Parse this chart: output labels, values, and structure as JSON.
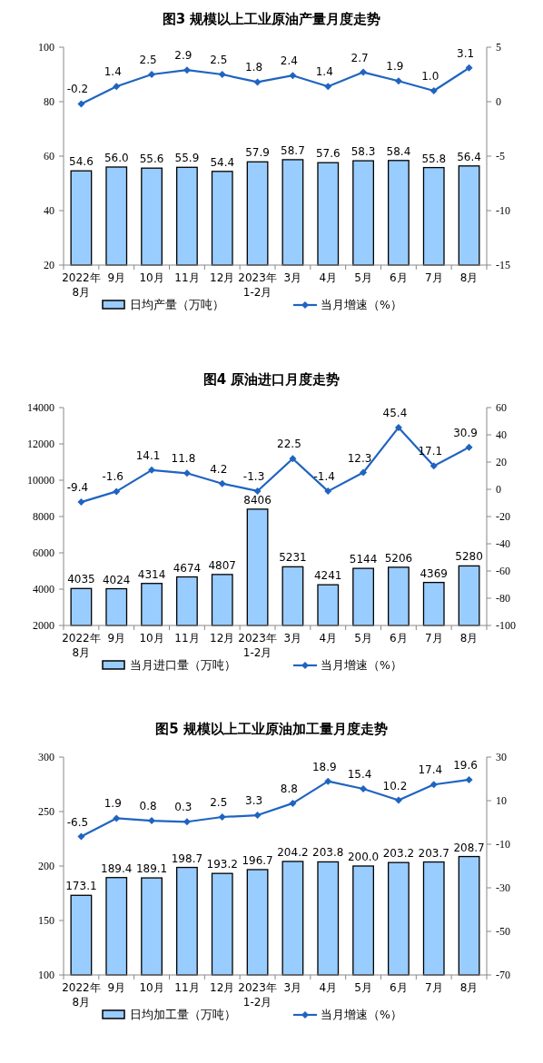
{
  "chart_data": [
    {
      "type": "bar",
      "title": "图3  规模以上工业原油产量月度走势",
      "categories": [
        "2022年\n8月",
        "9月",
        "10月",
        "11月",
        "12月",
        "2023年\n1-2月",
        "3月",
        "4月",
        "5月",
        "6月",
        "7月",
        "8月"
      ],
      "ylim": [
        20,
        100
      ],
      "yticks": [
        20,
        40,
        60,
        80,
        100
      ],
      "y2lim": [
        -15,
        5
      ],
      "y2ticks": [
        -15,
        -10,
        -5,
        0,
        5
      ],
      "legend": "bottom",
      "data_labels": true,
      "marker": "diamond",
      "series": [
        {
          "name": "日均产量（万吨）",
          "color": "#99ccff",
          "values": [
            54.6,
            56.0,
            55.6,
            55.9,
            54.4,
            57.9,
            58.7,
            57.6,
            58.3,
            58.4,
            55.8,
            56.4
          ],
          "value_labels": [
            "54.6",
            "56.0",
            "55.6",
            "55.9",
            "54.4",
            "57.9",
            "58.7",
            "57.6",
            "58.3",
            "58.4",
            "55.8",
            "56.4"
          ]
        },
        {
          "name": "当月增速（%）",
          "type": "line",
          "axis": "y2",
          "color": "#1f64c0",
          "values": [
            -0.2,
            1.4,
            2.5,
            2.9,
            2.5,
            1.8,
            2.4,
            1.4,
            2.7,
            1.9,
            1.0,
            3.1
          ],
          "value_labels": [
            "-0.2",
            "1.4",
            "2.5",
            "2.9",
            "2.5",
            "1.8",
            "2.4",
            "1.4",
            "2.7",
            "1.9",
            "1.0",
            "3.1"
          ]
        }
      ]
    },
    {
      "type": "bar",
      "title": "图4  原油进口月度走势",
      "categories": [
        "2022年\n8月",
        "9月",
        "10月",
        "11月",
        "12月",
        "2023年\n1-2月",
        "3月",
        "4月",
        "5月",
        "6月",
        "7月",
        "8月"
      ],
      "ylim": [
        2000,
        14000
      ],
      "yticks": [
        2000,
        4000,
        6000,
        8000,
        10000,
        12000,
        14000
      ],
      "y2lim": [
        -100,
        60
      ],
      "y2ticks": [
        -100,
        -80,
        -60,
        -40,
        -20,
        0,
        20,
        40,
        60
      ],
      "legend": "bottom",
      "data_labels": true,
      "marker": "diamond",
      "series": [
        {
          "name": "当月进口量（万吨）",
          "color": "#99ccff",
          "values": [
            4035,
            4024,
            4314,
            4674,
            4807,
            8406,
            5231,
            4241,
            5144,
            5206,
            4369,
            5280
          ]
        },
        {
          "name": "当月增速（%）",
          "type": "line",
          "axis": "y2",
          "color": "#1f64c0",
          "values": [
            -9.4,
            -1.6,
            14.1,
            11.8,
            4.2,
            -1.3,
            22.5,
            -1.4,
            12.3,
            45.4,
            17.1,
            30.9
          ]
        }
      ]
    },
    {
      "type": "bar",
      "title": "图5  规模以上工业原油加工量月度走势",
      "categories": [
        "2022年\n8月",
        "9月",
        "10月",
        "11月",
        "12月",
        "2023年\n1-2月",
        "3月",
        "4月",
        "5月",
        "6月",
        "7月",
        "8月"
      ],
      "ylim": [
        100,
        300
      ],
      "yticks": [
        100,
        150,
        200,
        250,
        300
      ],
      "y2lim": [
        -70,
        30
      ],
      "y2ticks": [
        -70,
        -50,
        -30,
        -10,
        10,
        30
      ],
      "legend": "bottom",
      "data_labels": true,
      "marker": "diamond",
      "series": [
        {
          "name": "日均加工量（万吨）",
          "color": "#99ccff",
          "values": [
            173.1,
            189.4,
            189.1,
            198.7,
            193.2,
            196.7,
            204.2,
            203.8,
            200.0,
            203.2,
            203.7,
            208.7
          ],
          "value_labels": [
            "173.1",
            "189.4",
            "189.1",
            "198.7",
            "193.2",
            "196.7",
            "204.2",
            "203.8",
            "200.0",
            "203.2",
            "203.7",
            "208.7"
          ]
        },
        {
          "name": "当月增速（%）",
          "type": "line",
          "axis": "y2",
          "color": "#1f64c0",
          "values": [
            -6.5,
            1.9,
            0.8,
            0.3,
            2.5,
            3.3,
            8.8,
            18.9,
            15.4,
            10.2,
            17.4,
            19.6
          ]
        }
      ]
    }
  ]
}
